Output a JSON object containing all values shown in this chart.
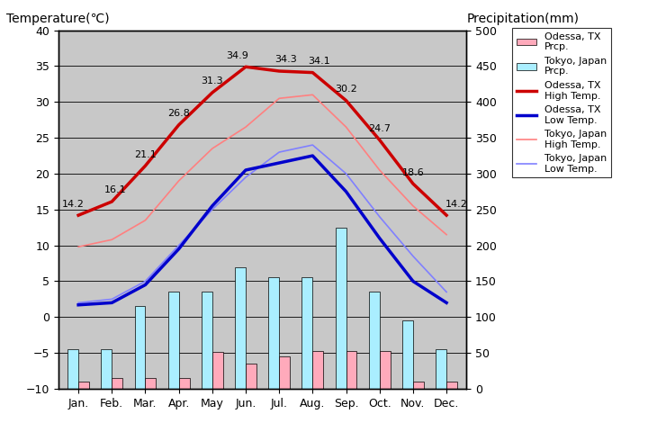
{
  "months": [
    "Jan.",
    "Feb.",
    "Mar.",
    "Apr.",
    "May",
    "Jun.",
    "Jul.",
    "Aug.",
    "Sep.",
    "Oct.",
    "Nov.",
    "Dec."
  ],
  "odessa_high": [
    14.2,
    16.1,
    21.1,
    26.8,
    31.3,
    34.9,
    34.3,
    34.1,
    30.2,
    24.7,
    18.6,
    14.2
  ],
  "odessa_low": [
    1.7,
    2.0,
    4.5,
    9.5,
    15.5,
    20.5,
    21.5,
    22.5,
    17.5,
    11.0,
    5.0,
    2.0
  ],
  "tokyo_high": [
    9.8,
    10.8,
    13.5,
    19.0,
    23.5,
    26.5,
    30.5,
    31.0,
    26.5,
    20.5,
    15.5,
    11.5
  ],
  "tokyo_low": [
    2.0,
    2.5,
    5.0,
    10.0,
    15.0,
    19.5,
    23.0,
    24.0,
    20.0,
    14.0,
    8.5,
    3.5
  ],
  "odessa_precip_bar_top": [
    -9.0,
    -8.5,
    -8.5,
    -8.5,
    -4.8,
    -6.5,
    -5.5,
    -4.7,
    -4.7,
    -4.7,
    -9.0,
    -9.0
  ],
  "tokyo_precip_bar_top": [
    -4.5,
    -4.5,
    1.5,
    3.5,
    3.5,
    7.0,
    5.5,
    5.5,
    12.5,
    3.5,
    -0.5,
    -4.5
  ],
  "background_color": "#c8c8c8",
  "title_left": "Temperature(℃)",
  "title_right": "Precipitation(mm)",
  "odessa_high_color": "#cc0000",
  "odessa_low_color": "#0000cc",
  "tokyo_high_color": "#ff8080",
  "tokyo_low_color": "#8080ff",
  "odessa_precip_color": "#ffaabb",
  "tokyo_precip_color": "#aaeeff",
  "ylim_temp": [
    -10,
    40
  ],
  "ylim_precip": [
    0,
    500
  ],
  "bar_bottom": -10.0,
  "precip_scale": 10.0,
  "grid_color": "#000000"
}
